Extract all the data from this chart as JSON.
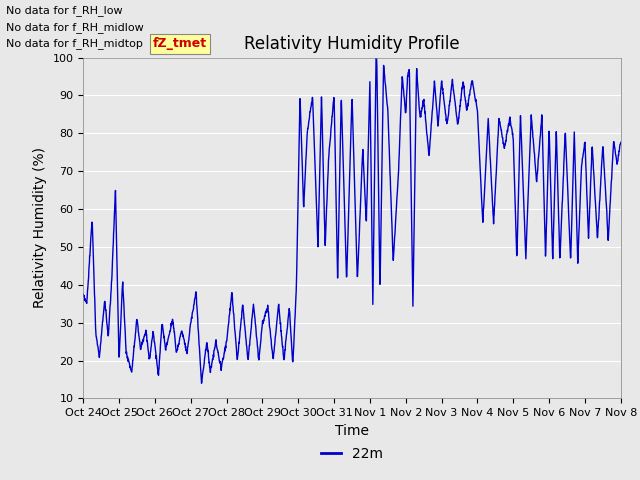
{
  "title": "Relativity Humidity Profile",
  "xlabel": "Time",
  "ylabel": "Relativity Humidity (%)",
  "legend_label": "22m",
  "line_color": "#0000cc",
  "background_color": "#e8e8e8",
  "ylim": [
    10,
    100
  ],
  "yticks": [
    10,
    20,
    30,
    40,
    50,
    60,
    70,
    80,
    90,
    100
  ],
  "xtick_labels": [
    "Oct 24",
    "Oct 25",
    "Oct 26",
    "Oct 27",
    "Oct 28",
    "Oct 29",
    "Oct 30",
    "Oct 31",
    "Nov 1",
    "Nov 2",
    "Nov 3",
    "Nov 4",
    "Nov 5",
    "Nov 6",
    "Nov 7",
    "Nov 8"
  ],
  "no_data_texts": [
    "No data for f_RH_low",
    "No data for f_RH_midlow",
    "No data for f_RH_midtop"
  ],
  "legend_box_color": "#ffff99",
  "legend_text_color": "#cc0000",
  "title_fontsize": 12,
  "axis_label_fontsize": 10,
  "tick_fontsize": 8,
  "nodata_fontsize": 8,
  "fztmet_fontsize": 9
}
